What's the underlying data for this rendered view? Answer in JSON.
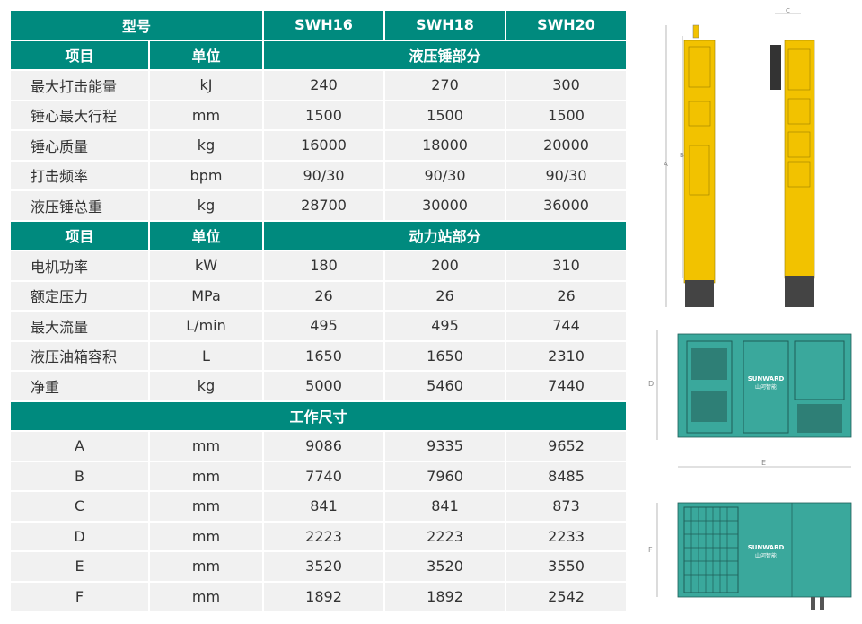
{
  "table": {
    "model_label": "型号",
    "models": [
      "SWH16",
      "SWH18",
      "SWH20"
    ],
    "item_label": "项目",
    "unit_label": "单位",
    "sections": [
      {
        "title": "液压锤部分",
        "rows": [
          {
            "item": "最大打击能量",
            "unit": "kJ",
            "values": [
              "240",
              "270",
              "300"
            ]
          },
          {
            "item": "锤心最大行程",
            "unit": "mm",
            "values": [
              "1500",
              "1500",
              "1500"
            ]
          },
          {
            "item": "锤心质量",
            "unit": "kg",
            "values": [
              "16000",
              "18000",
              "20000"
            ]
          },
          {
            "item": "打击频率",
            "unit": "bpm",
            "values": [
              "90/30",
              "90/30",
              "90/30"
            ]
          },
          {
            "item": "液压锤总重",
            "unit": "kg",
            "values": [
              "28700",
              "30000",
              "36000"
            ]
          }
        ]
      },
      {
        "title": "动力站部分",
        "rows": [
          {
            "item": "电机功率",
            "unit": "kW",
            "values": [
              "180",
              "200",
              "310"
            ]
          },
          {
            "item": "额定压力",
            "unit": "MPa",
            "values": [
              "26",
              "26",
              "26"
            ]
          },
          {
            "item": "最大流量",
            "unit": "L/min",
            "values": [
              "495",
              "495",
              "744"
            ]
          },
          {
            "item": "液压油箱容积",
            "unit": "L",
            "values": [
              "1650",
              "1650",
              "2310"
            ]
          },
          {
            "item": "净重",
            "unit": "kg",
            "values": [
              "5000",
              "5460",
              "7440"
            ]
          }
        ]
      }
    ],
    "dimensions": {
      "title": "工作尺寸",
      "rows": [
        {
          "item": "A",
          "unit": "mm",
          "values": [
            "9086",
            "9335",
            "9652"
          ]
        },
        {
          "item": "B",
          "unit": "mm",
          "values": [
            "7740",
            "7960",
            "8485"
          ]
        },
        {
          "item": "C",
          "unit": "mm",
          "values": [
            "841",
            "841",
            "873"
          ]
        },
        {
          "item": "D",
          "unit": "mm",
          "values": [
            "2223",
            "2223",
            "2233"
          ]
        },
        {
          "item": "E",
          "unit": "mm",
          "values": [
            "3520",
            "3520",
            "3550"
          ]
        },
        {
          "item": "F",
          "unit": "mm",
          "values": [
            "1892",
            "1892",
            "2542"
          ]
        }
      ]
    }
  },
  "drawings": {
    "labels": {
      "a": "A",
      "b": "B",
      "c": "C",
      "d": "D",
      "e": "E",
      "f": "F"
    },
    "brand": "SUNWARD",
    "brand_cn": "山河智能"
  },
  "colors": {
    "header": "#008a7e",
    "hammer": "#f2c200",
    "power_unit": "#3aa89c"
  }
}
